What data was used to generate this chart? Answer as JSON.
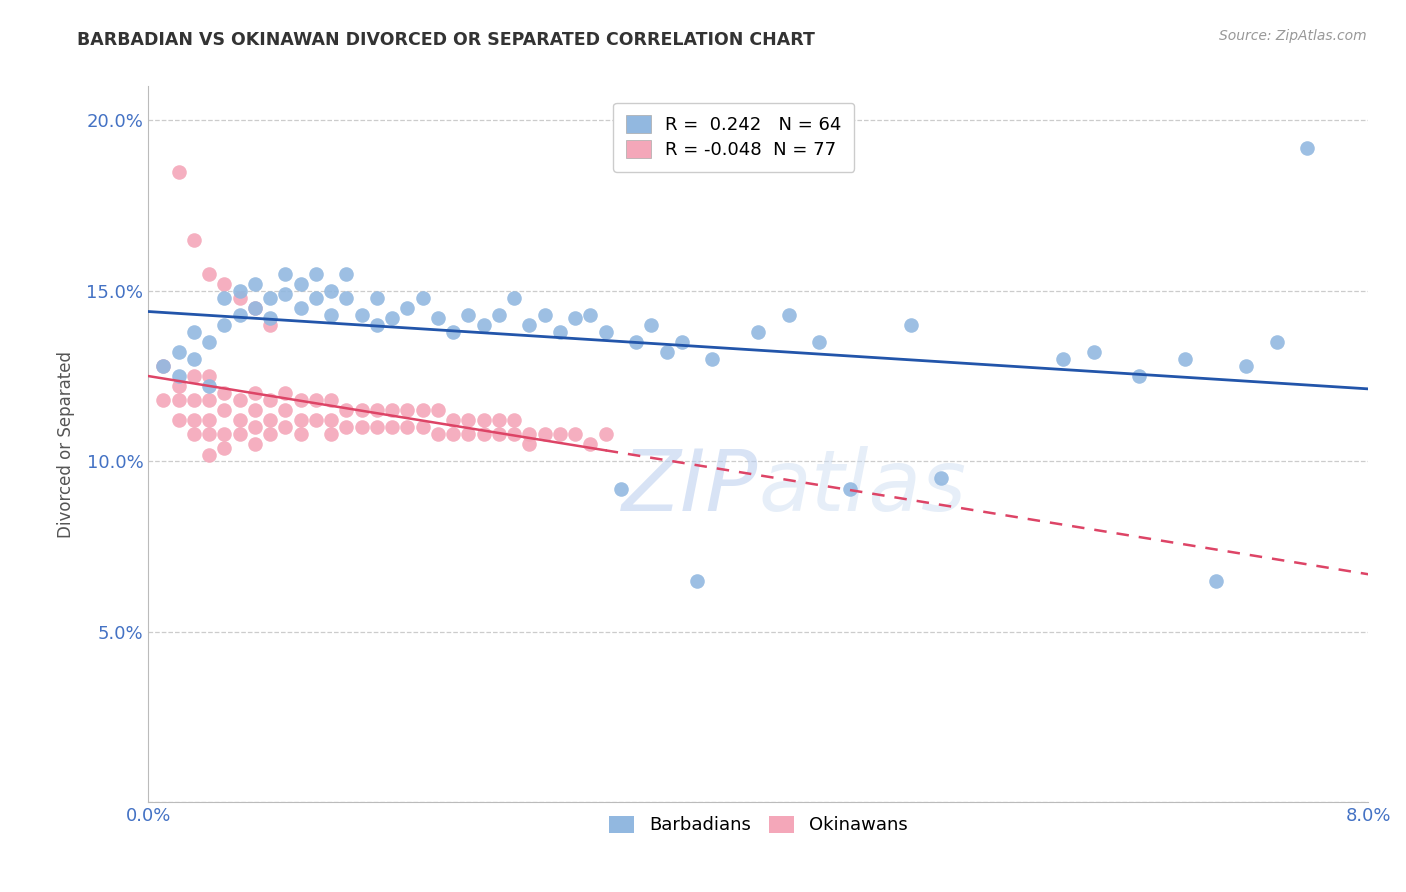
{
  "title": "BARBADIAN VS OKINAWAN DIVORCED OR SEPARATED CORRELATION CHART",
  "source": "Source: ZipAtlas.com",
  "ylabel": "Divorced or Separated",
  "blue_color": "#92b8e0",
  "pink_color": "#f4a7b9",
  "blue_line_color": "#2255aa",
  "pink_line_color": "#dd4466",
  "watermark_text": "ZIP",
  "watermark_text2": "atlas",
  "xlim": [
    0.0,
    0.08
  ],
  "ylim": [
    0.0,
    0.21
  ],
  "barbadian_R": 0.242,
  "barbadian_N": 64,
  "okinawan_R": -0.048,
  "okinawan_N": 77,
  "barbadian_x": [
    0.001,
    0.002,
    0.002,
    0.003,
    0.003,
    0.004,
    0.004,
    0.005,
    0.005,
    0.006,
    0.006,
    0.007,
    0.007,
    0.008,
    0.008,
    0.009,
    0.009,
    0.01,
    0.01,
    0.011,
    0.011,
    0.012,
    0.012,
    0.013,
    0.013,
    0.014,
    0.015,
    0.015,
    0.016,
    0.017,
    0.018,
    0.019,
    0.02,
    0.021,
    0.022,
    0.023,
    0.024,
    0.025,
    0.026,
    0.027,
    0.028,
    0.029,
    0.03,
    0.031,
    0.032,
    0.033,
    0.034,
    0.035,
    0.036,
    0.037,
    0.04,
    0.042,
    0.044,
    0.046,
    0.05,
    0.052,
    0.06,
    0.062,
    0.065,
    0.068,
    0.07,
    0.072,
    0.074,
    0.076
  ],
  "barbadian_y": [
    0.128,
    0.132,
    0.125,
    0.138,
    0.13,
    0.135,
    0.122,
    0.14,
    0.148,
    0.143,
    0.15,
    0.152,
    0.145,
    0.148,
    0.142,
    0.155,
    0.149,
    0.152,
    0.145,
    0.148,
    0.155,
    0.15,
    0.143,
    0.148,
    0.155,
    0.143,
    0.14,
    0.148,
    0.142,
    0.145,
    0.148,
    0.142,
    0.138,
    0.143,
    0.14,
    0.143,
    0.148,
    0.14,
    0.143,
    0.138,
    0.142,
    0.143,
    0.138,
    0.092,
    0.135,
    0.14,
    0.132,
    0.135,
    0.065,
    0.13,
    0.138,
    0.143,
    0.135,
    0.092,
    0.14,
    0.095,
    0.13,
    0.132,
    0.125,
    0.13,
    0.065,
    0.128,
    0.135,
    0.192
  ],
  "okinawan_x": [
    0.001,
    0.001,
    0.002,
    0.002,
    0.002,
    0.003,
    0.003,
    0.003,
    0.003,
    0.004,
    0.004,
    0.004,
    0.004,
    0.004,
    0.005,
    0.005,
    0.005,
    0.005,
    0.006,
    0.006,
    0.006,
    0.007,
    0.007,
    0.007,
    0.007,
    0.008,
    0.008,
    0.008,
    0.009,
    0.009,
    0.009,
    0.01,
    0.01,
    0.01,
    0.011,
    0.011,
    0.012,
    0.012,
    0.012,
    0.013,
    0.013,
    0.014,
    0.014,
    0.015,
    0.015,
    0.016,
    0.016,
    0.017,
    0.017,
    0.018,
    0.018,
    0.019,
    0.019,
    0.02,
    0.02,
    0.021,
    0.021,
    0.022,
    0.022,
    0.023,
    0.023,
    0.024,
    0.024,
    0.025,
    0.025,
    0.026,
    0.027,
    0.028,
    0.029,
    0.03,
    0.002,
    0.003,
    0.004,
    0.005,
    0.006,
    0.007,
    0.008
  ],
  "okinawan_y": [
    0.128,
    0.118,
    0.122,
    0.118,
    0.112,
    0.125,
    0.118,
    0.112,
    0.108,
    0.125,
    0.118,
    0.112,
    0.108,
    0.102,
    0.12,
    0.115,
    0.108,
    0.104,
    0.118,
    0.112,
    0.108,
    0.12,
    0.115,
    0.11,
    0.105,
    0.118,
    0.112,
    0.108,
    0.12,
    0.115,
    0.11,
    0.118,
    0.112,
    0.108,
    0.118,
    0.112,
    0.118,
    0.112,
    0.108,
    0.115,
    0.11,
    0.115,
    0.11,
    0.115,
    0.11,
    0.115,
    0.11,
    0.115,
    0.11,
    0.115,
    0.11,
    0.115,
    0.108,
    0.112,
    0.108,
    0.112,
    0.108,
    0.112,
    0.108,
    0.112,
    0.108,
    0.112,
    0.108,
    0.108,
    0.105,
    0.108,
    0.108,
    0.108,
    0.105,
    0.108,
    0.185,
    0.165,
    0.155,
    0.152,
    0.148,
    0.145,
    0.14
  ]
}
